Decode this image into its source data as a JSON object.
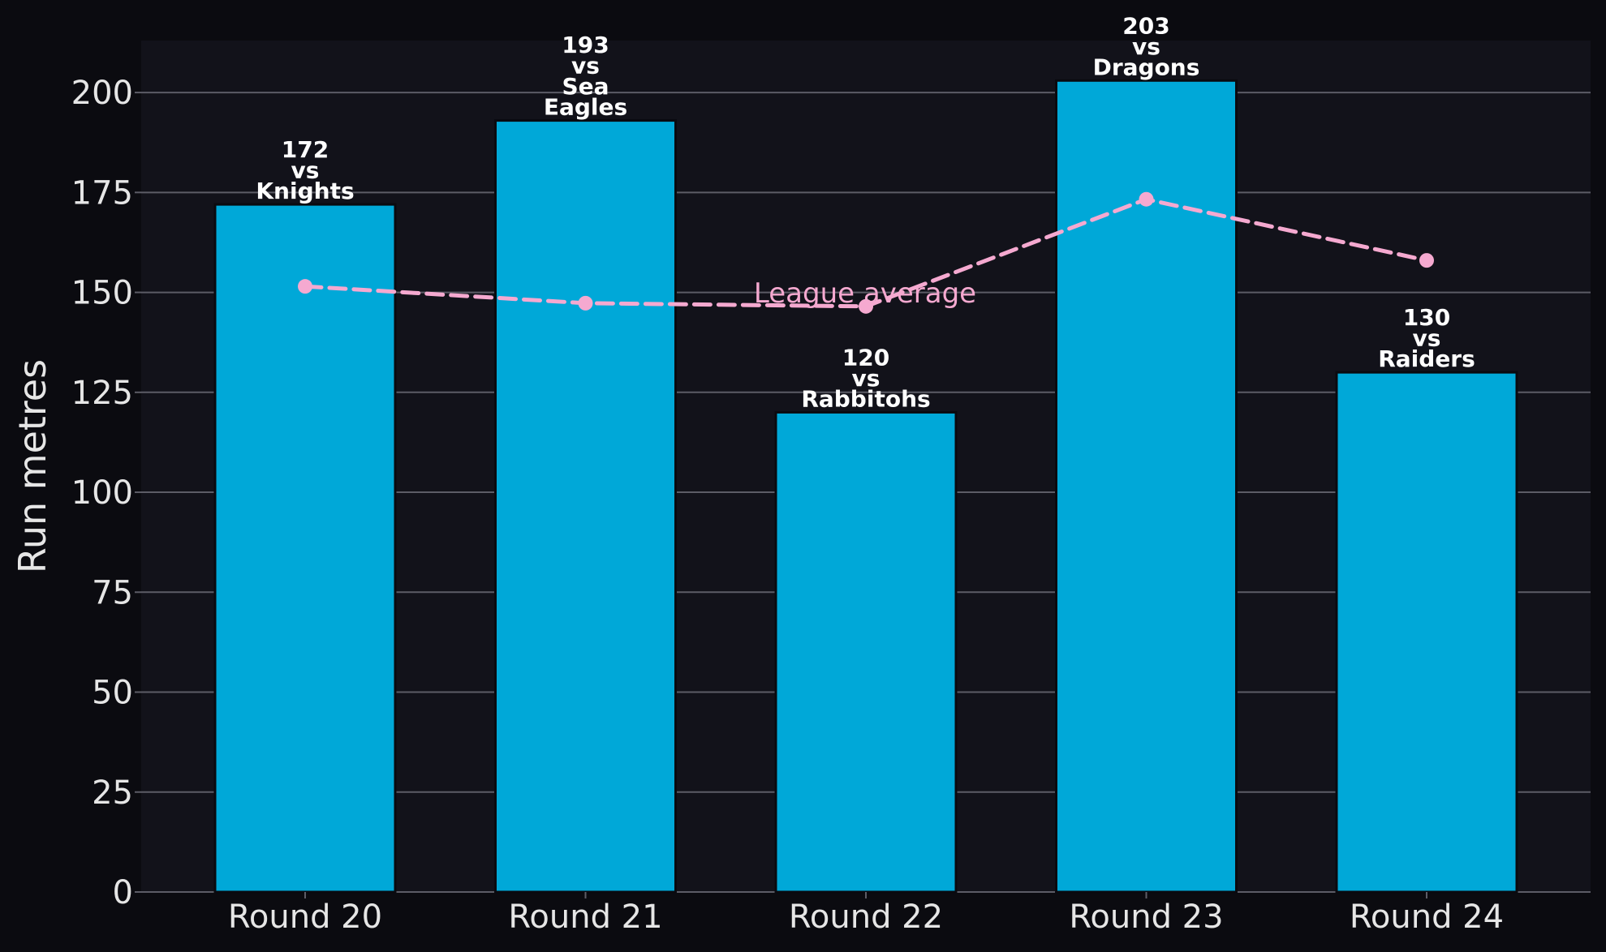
{
  "chart_data": {
    "type": "bar",
    "categories": [
      "Round 20",
      "Round 21",
      "Round 22",
      "Round 23",
      "Round 24"
    ],
    "series": [
      {
        "values": [
          172,
          193,
          120,
          203,
          130
        ],
        "color": "#00a8d8"
      },
      {
        "name": "League average",
        "type": "line",
        "values": [
          151.5,
          147.3,
          146.5,
          173.3,
          158
        ],
        "color": "#f5a9d0",
        "style": "dashed"
      }
    ],
    "bar_labels": [
      [
        "172",
        "vs",
        "Knights"
      ],
      [
        "193",
        "vs",
        "Sea",
        "Eagles"
      ],
      [
        "120",
        "vs",
        "Rabbitohs"
      ],
      [
        "203",
        "vs",
        "Dragons"
      ],
      [
        "130",
        "vs",
        "Raiders"
      ]
    ],
    "title": "",
    "xlabel": "",
    "ylabel": "Run metres",
    "ylim": [
      0,
      213
    ],
    "yticks": [
      0,
      25,
      50,
      75,
      100,
      125,
      150,
      175,
      200
    ],
    "grid": "horizontal",
    "background_color": "#12121a",
    "page_color": "#0b0b10"
  }
}
